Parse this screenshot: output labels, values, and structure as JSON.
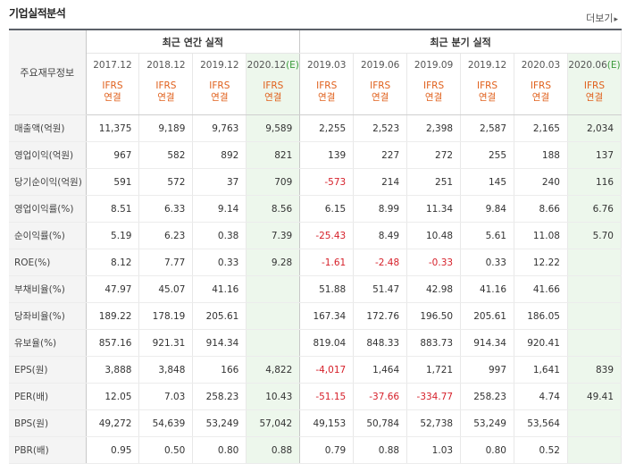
{
  "header": {
    "title": "기업실적분석",
    "more_label": "더보기",
    "more_icon": "triangle-right-icon"
  },
  "table": {
    "row_header_label": "주요재무정보",
    "annual_group": "최근 연간 실적",
    "quarter_group": "최근 분기 실적",
    "periods": [
      {
        "label": "2017.12",
        "est": false
      },
      {
        "label": "2018.12",
        "est": false
      },
      {
        "label": "2019.12",
        "est": false
      },
      {
        "label": "2020.12",
        "est": true,
        "est_mark": "(E)"
      },
      {
        "label": "2019.03",
        "est": false
      },
      {
        "label": "2019.06",
        "est": false
      },
      {
        "label": "2019.09",
        "est": false
      },
      {
        "label": "2019.12",
        "est": false
      },
      {
        "label": "2020.03",
        "est": false
      },
      {
        "label": "2020.06",
        "est": true,
        "est_mark": "(E)"
      }
    ],
    "basis": {
      "line1": "IFRS",
      "line2": "연결"
    },
    "rows": [
      {
        "label": "매출액(억원)",
        "values": [
          "11,375",
          "9,189",
          "9,763",
          "9,589",
          "2,255",
          "2,523",
          "2,398",
          "2,587",
          "2,165",
          "2,034"
        ]
      },
      {
        "label": "영업이익(억원)",
        "values": [
          "967",
          "582",
          "892",
          "821",
          "139",
          "227",
          "272",
          "255",
          "188",
          "137"
        ]
      },
      {
        "label": "당기순이익(억원)",
        "values": [
          "591",
          "572",
          "37",
          "709",
          "-573",
          "214",
          "251",
          "145",
          "240",
          "116"
        ]
      },
      {
        "label": "영업이익률(%)",
        "values": [
          "8.51",
          "6.33",
          "9.14",
          "8.56",
          "6.15",
          "8.99",
          "11.34",
          "9.84",
          "8.66",
          "6.76"
        ]
      },
      {
        "label": "순이익률(%)",
        "values": [
          "5.19",
          "6.23",
          "0.38",
          "7.39",
          "-25.43",
          "8.49",
          "10.48",
          "5.61",
          "11.08",
          "5.70"
        ]
      },
      {
        "label": "ROE(%)",
        "values": [
          "8.12",
          "7.77",
          "0.33",
          "9.28",
          "-1.61",
          "-2.48",
          "-0.33",
          "0.33",
          "12.22",
          ""
        ]
      },
      {
        "label": "부채비율(%)",
        "values": [
          "47.97",
          "45.07",
          "41.16",
          "",
          "51.88",
          "51.47",
          "42.98",
          "41.16",
          "41.66",
          ""
        ]
      },
      {
        "label": "당좌비율(%)",
        "values": [
          "189.22",
          "178.19",
          "205.61",
          "",
          "167.34",
          "172.76",
          "196.50",
          "205.61",
          "186.05",
          ""
        ]
      },
      {
        "label": "유보율(%)",
        "values": [
          "857.16",
          "921.31",
          "914.34",
          "",
          "819.04",
          "848.33",
          "883.73",
          "914.34",
          "920.41",
          ""
        ]
      },
      {
        "label": "EPS(원)",
        "values": [
          "3,888",
          "3,848",
          "166",
          "4,822",
          "-4,017",
          "1,464",
          "1,721",
          "997",
          "1,641",
          "839"
        ]
      },
      {
        "label": "PER(배)",
        "values": [
          "12.05",
          "7.03",
          "258.23",
          "10.43",
          "-51.15",
          "-37.66",
          "-334.77",
          "258.23",
          "4.74",
          "49.41"
        ]
      },
      {
        "label": "BPS(원)",
        "values": [
          "49,272",
          "54,639",
          "53,249",
          "57,042",
          "49,153",
          "50,784",
          "52,738",
          "53,249",
          "53,564",
          ""
        ]
      },
      {
        "label": "PBR(배)",
        "values": [
          "0.95",
          "0.50",
          "0.80",
          "0.88",
          "0.79",
          "0.88",
          "1.03",
          "0.80",
          "0.52",
          ""
        ]
      }
    ]
  }
}
